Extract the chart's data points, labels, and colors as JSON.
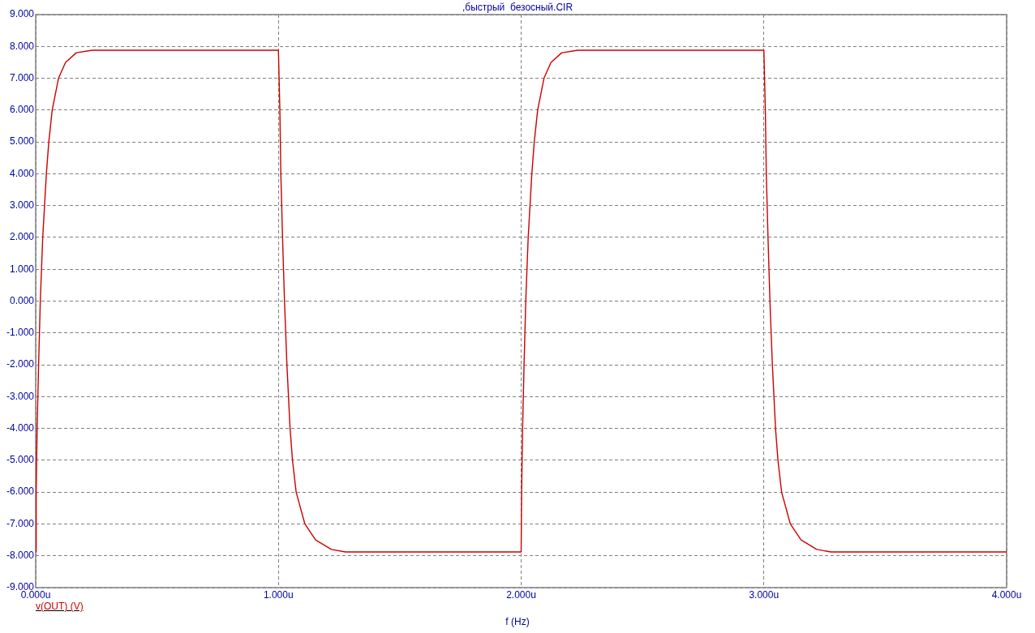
{
  "chart_data": {
    "type": "line",
    "title": ",быстрый  безосный.CIR",
    "xlabel": "f (Hz)",
    "series": [
      {
        "name": "v(OUT) (V)",
        "color": "#cc0000",
        "x": [
          0,
          0.002,
          0.006,
          0.012,
          0.019,
          0.029,
          0.044,
          0.054,
          0.068,
          0.094,
          0.123,
          0.167,
          0.233,
          1.0,
          1.006,
          1.01,
          1.017,
          1.025,
          1.035,
          1.048,
          1.058,
          1.073,
          1.109,
          1.153,
          1.218,
          1.276,
          2.0,
          2.002,
          2.006,
          2.012,
          2.019,
          2.029,
          2.044,
          2.054,
          2.068,
          2.094,
          2.123,
          2.167,
          2.233,
          3.0,
          3.006,
          3.01,
          3.017,
          3.025,
          3.035,
          3.048,
          3.058,
          3.073,
          3.109,
          3.153,
          3.218,
          3.276,
          4.0
        ],
        "values": [
          -7.88,
          -6,
          -4,
          -2,
          0,
          2,
          4,
          5,
          6,
          7,
          7.5,
          7.8,
          7.88,
          7.88,
          6,
          4,
          2,
          0,
          -2,
          -4,
          -5,
          -6,
          -7,
          -7.5,
          -7.8,
          -7.88,
          -7.88,
          -6,
          -4,
          -2,
          0,
          2,
          4,
          5,
          6,
          7,
          7.5,
          7.8,
          7.88,
          7.88,
          6,
          4,
          2,
          0,
          -2,
          -4,
          -5,
          -6,
          -7,
          -7.5,
          -7.8,
          -7.88,
          -7.88
        ]
      }
    ],
    "xlim": [
      0,
      4
    ],
    "xticks": [
      {
        "value": 0,
        "label": "0.000u"
      },
      {
        "value": 1,
        "label": "1.000u"
      },
      {
        "value": 2,
        "label": "2.000u"
      },
      {
        "value": 3,
        "label": "3.000u"
      },
      {
        "value": 4,
        "label": "4.000u"
      }
    ],
    "ylim": [
      -9,
      9
    ],
    "yticks": [
      {
        "value": 9,
        "label": "9.000"
      },
      {
        "value": 8,
        "label": "8.000"
      },
      {
        "value": 7,
        "label": "7.000"
      },
      {
        "value": 6,
        "label": "6.000"
      },
      {
        "value": 5,
        "label": "5.000"
      },
      {
        "value": 4,
        "label": "4.000"
      },
      {
        "value": 3,
        "label": "3.000"
      },
      {
        "value": 2,
        "label": "2.000"
      },
      {
        "value": 1,
        "label": "1.000"
      },
      {
        "value": 0,
        "label": "0.000"
      },
      {
        "value": -1,
        "label": "-1.000"
      },
      {
        "value": -2,
        "label": "-2.000"
      },
      {
        "value": -3,
        "label": "-3.000"
      },
      {
        "value": -4,
        "label": "-4.000"
      },
      {
        "value": -5,
        "label": "-5.000"
      },
      {
        "value": -6,
        "label": "-6.000"
      },
      {
        "value": -7,
        "label": "-7.000"
      },
      {
        "value": -8,
        "label": "-8.000"
      },
      {
        "value": -9,
        "label": "-9.000"
      }
    ],
    "grid": true,
    "legend": "bottom left",
    "marker": "none",
    "line_style": "solid"
  }
}
